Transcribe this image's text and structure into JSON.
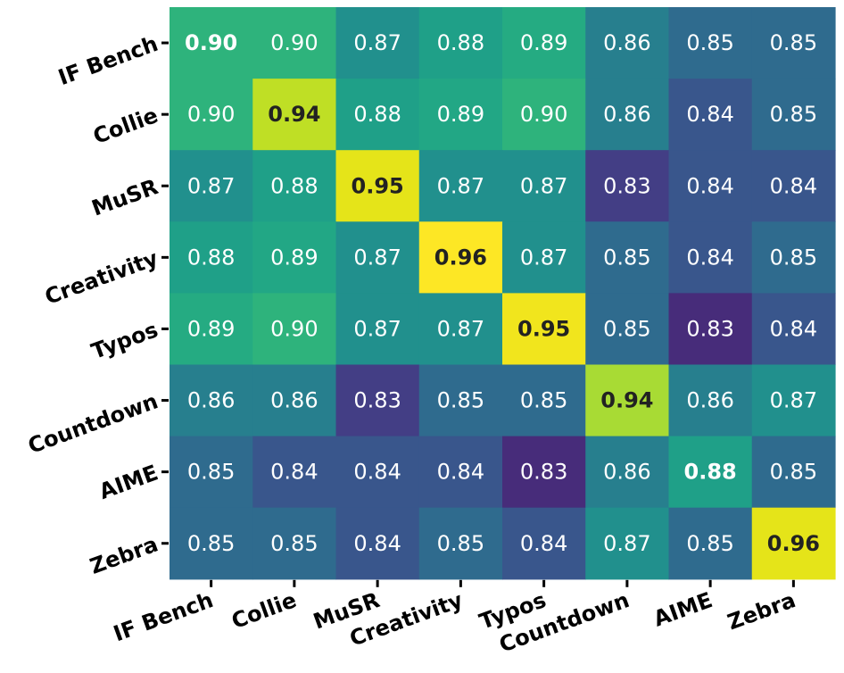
{
  "chart_data": {
    "type": "heatmap",
    "title": "",
    "xlabel": "",
    "ylabel": "",
    "x_categories": [
      "IF Bench",
      "Collie",
      "MuSR",
      "Creativity",
      "Typos",
      "Countdown",
      "AIME",
      "Zebra"
    ],
    "y_categories": [
      "IF Bench",
      "Collie",
      "MuSR",
      "Creativity",
      "Typos",
      "Countdown",
      "AIME",
      "Zebra"
    ],
    "values": [
      [
        0.9,
        0.9,
        0.87,
        0.88,
        0.89,
        0.86,
        0.85,
        0.85
      ],
      [
        0.9,
        0.94,
        0.88,
        0.89,
        0.9,
        0.86,
        0.84,
        0.85
      ],
      [
        0.87,
        0.88,
        0.95,
        0.87,
        0.87,
        0.83,
        0.84,
        0.84
      ],
      [
        0.88,
        0.89,
        0.87,
        0.96,
        0.87,
        0.85,
        0.84,
        0.85
      ],
      [
        0.89,
        0.9,
        0.87,
        0.87,
        0.95,
        0.85,
        0.83,
        0.84
      ],
      [
        0.86,
        0.86,
        0.83,
        0.85,
        0.85,
        0.94,
        0.86,
        0.87
      ],
      [
        0.85,
        0.84,
        0.84,
        0.84,
        0.83,
        0.86,
        0.88,
        0.85
      ],
      [
        0.85,
        0.85,
        0.84,
        0.85,
        0.84,
        0.87,
        0.85,
        0.96
      ]
    ],
    "colors": [
      [
        "#2eb37c",
        "#2eb37c",
        "#21908d",
        "#1fa088",
        "#25ab82",
        "#277f8e",
        "#2f6b8e",
        "#2f6b8e"
      ],
      [
        "#2eb37c",
        "#bfdf25",
        "#1fa088",
        "#22a785",
        "#2eb37c",
        "#277f8e",
        "#39568c",
        "#2f6b8e"
      ],
      [
        "#21908d",
        "#1fa088",
        "#e5e419",
        "#21908d",
        "#21908d",
        "#433e85",
        "#39568c",
        "#39568c"
      ],
      [
        "#1fa088",
        "#22a785",
        "#21908d",
        "#fde725",
        "#21908d",
        "#2f6b8e",
        "#39568c",
        "#2f6b8e"
      ],
      [
        "#25ab82",
        "#2eb37c",
        "#21908d",
        "#21908d",
        "#f1e51d",
        "#2f6b8e",
        "#472c7a",
        "#39568c"
      ],
      [
        "#277f8e",
        "#277f8e",
        "#433e85",
        "#2f6b8e",
        "#2f6b8e",
        "#a8db34",
        "#277f8e",
        "#21908d"
      ],
      [
        "#2f6b8e",
        "#39568c",
        "#39568c",
        "#39568c",
        "#472c7a",
        "#277f8e",
        "#1fa088",
        "#2f6b8e"
      ],
      [
        "#2f6b8e",
        "#2f6b8e",
        "#39568c",
        "#2f6b8e",
        "#39568c",
        "#21908d",
        "#2f6b8e",
        "#e5e419"
      ]
    ],
    "text_dark_color": "#222222",
    "text_light_color": "#ffffff",
    "diagonal_bold": true,
    "colorscale": "viridis",
    "grid": false
  }
}
